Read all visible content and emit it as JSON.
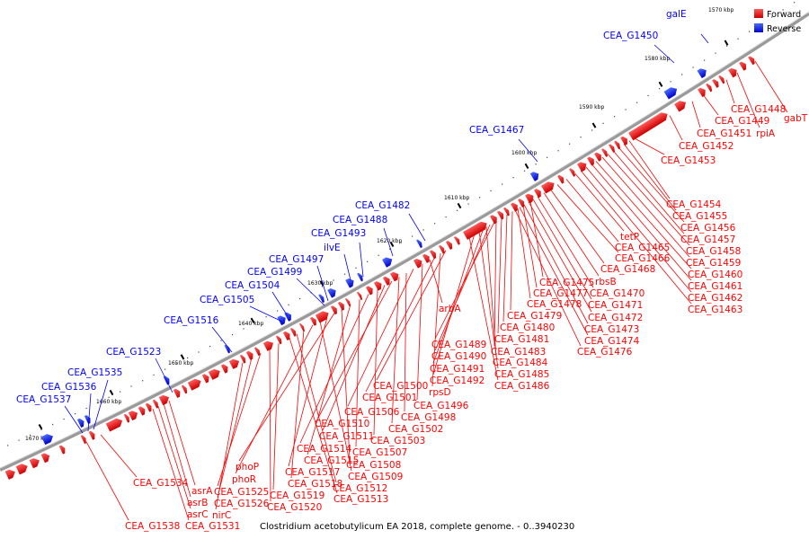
{
  "caption": "Clostridium acetobutylicum EA 2018, complete genome. - 0..3940230",
  "legend": [
    {
      "label": "Forward",
      "color": "#ff0000"
    },
    {
      "label": "Reverse",
      "color": "#0000ff"
    }
  ],
  "colors": {
    "forward": "#ff0000",
    "reverse": "#0000ff",
    "backbone": "#888888"
  },
  "ticks": [
    "1570 kbp",
    "1580 kbp",
    "1590 kbp",
    "1600 kbp",
    "1610 kbp",
    "1620 kbp",
    "1630 kbp",
    "1640 kbp",
    "1650 kbp",
    "1660 kbp",
    "1670 kbp"
  ],
  "reverse_labels": [
    "galE",
    "CEA_G1450",
    "CEA_G1467",
    "CEA_G1482",
    "CEA_G1488",
    "CEA_G1493",
    "ilvE",
    "CEA_G1497",
    "CEA_G1499",
    "CEA_G1504",
    "CEA_G1505",
    "CEA_G1516",
    "CEA_G1523",
    "CEA_G1535",
    "CEA_G1536",
    "CEA_G1537"
  ],
  "forward_labels": [
    "CEA_G1448",
    "gabT",
    "CEA_G1449",
    "CEA_G1451",
    "rpiA",
    "CEA_G1452",
    "CEA_G1453",
    "CEA_G1454",
    "CEA_G1455",
    "CEA_G1456",
    "CEA_G1457",
    "CEA_G1458",
    "CEA_G1459",
    "CEA_G1460",
    "CEA_G1461",
    "CEA_G1462",
    "CEA_G1463",
    "tetP",
    "CEA_G1465",
    "CEA_G1466",
    "CEA_G1468",
    "CEA_G1475",
    "rbsB",
    "CEA_G1477",
    "CEA_G1470",
    "CEA_G1478",
    "CEA_G1471",
    "CEA_G1479",
    "CEA_G1472",
    "CEA_G1480",
    "CEA_G1473",
    "CEA_G1481",
    "CEA_G1474",
    "CEA_G1476",
    "arbA",
    "CEA_G1489",
    "CEA_G1483",
    "CEA_G1490",
    "CEA_G1484",
    "CEA_G1491",
    "CEA_G1485",
    "CEA_G1492",
    "CEA_G1486",
    "CEA_G1500",
    "rpsD",
    "CEA_G1501",
    "CEA_G1496",
    "CEA_G1506",
    "CEA_G1498",
    "CEA_G1502",
    "CEA_G1510",
    "CEA_G1511",
    "CEA_G1503",
    "CEA_G1514",
    "CEA_G1507",
    "CEA_G1515",
    "CEA_G1508",
    "phoP",
    "CEA_G1517",
    "CEA_G1509",
    "phoR",
    "CEA_G1518",
    "CEA_G1512",
    "CEA_G1534",
    "asrA",
    "CEA_G1525",
    "CEA_G1519",
    "asrB",
    "CEA_G1526",
    "CEA_G1520",
    "CEA_G1513",
    "asrC",
    "nirC",
    "CEA_G1538",
    "CEA_G1531"
  ]
}
